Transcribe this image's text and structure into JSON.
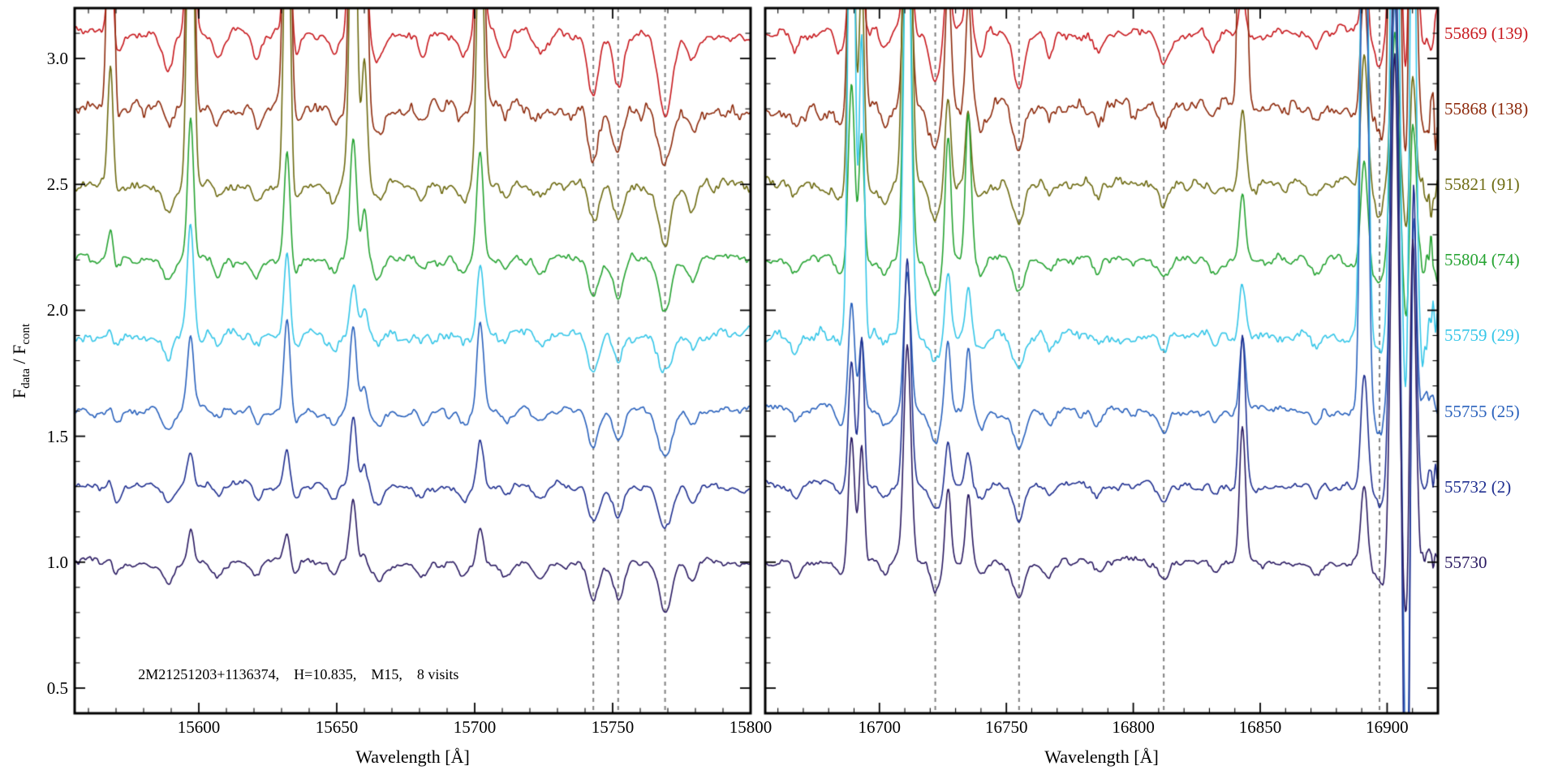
{
  "chart_data": {
    "type": "line",
    "title": "",
    "xlabel": "Wavelength [Å]",
    "ylabel": "F_data / F_cont",
    "ylabel_parts": {
      "f1": "F",
      "sub1": "data",
      "mid": " / F",
      "sub2": "cont"
    },
    "ylim": [
      0.4,
      3.2
    ],
    "yticks": [
      "0.5",
      "1.0",
      "1.5",
      "2.0",
      "2.5",
      "3.0"
    ],
    "ytick_values": [
      0.5,
      1.0,
      1.5,
      2.0,
      2.5,
      3.0
    ],
    "y_minor_step": 0.1,
    "grid": false,
    "legend_position": "right",
    "annotation": "2M21251203+1136374,    H=10.835,    M15,    8 visits",
    "annotation_xy": [
      15578,
      0.55
    ],
    "dashed_line_color": "#808080",
    "axis_color": "#000000",
    "panels": [
      {
        "xlim": [
          15555,
          15800
        ],
        "xticks": [
          15600,
          15650,
          15700,
          15750,
          15800
        ],
        "x_minor_step": 10,
        "dashed_lines": [
          15743,
          15752,
          15769
        ],
        "absorption_lines": [
          {
            "x": 15570,
            "w": 1.6,
            "d": 0.05
          },
          {
            "x": 15589,
            "w": 1.8,
            "d": 0.07
          },
          {
            "x": 15607,
            "w": 1.5,
            "d": 0.05
          },
          {
            "x": 15621,
            "w": 1.5,
            "d": 0.05
          },
          {
            "x": 15635,
            "w": 1.5,
            "d": 0.04
          },
          {
            "x": 15649,
            "w": 1.5,
            "d": 0.05
          },
          {
            "x": 15665,
            "w": 1.8,
            "d": 0.06
          },
          {
            "x": 15681,
            "w": 1.5,
            "d": 0.04
          },
          {
            "x": 15696,
            "w": 1.5,
            "d": 0.04
          },
          {
            "x": 15711,
            "w": 1.5,
            "d": 0.04
          },
          {
            "x": 15724,
            "w": 1.8,
            "d": 0.05
          },
          {
            "x": 15743,
            "w": 2.0,
            "d": 0.14
          },
          {
            "x": 15752,
            "w": 1.8,
            "d": 0.13
          },
          {
            "x": 15769,
            "w": 2.4,
            "d": 0.18
          },
          {
            "x": 15779,
            "w": 1.8,
            "d": 0.07
          }
        ],
        "emission_lines": [
          {
            "x": 15568,
            "w": 1.0,
            "amps": [
              0.45,
              1.6,
              0.5,
              0.12,
              0.06,
              0.05,
              0.04,
              0.03
            ]
          },
          {
            "x": 15597,
            "w": 1.1,
            "amps": [
              1.8,
              1.8,
              1.8,
              0.55,
              0.45,
              0.28,
              0.14,
              0.12
            ]
          },
          {
            "x": 15632,
            "w": 1.1,
            "amps": [
              0.9,
              1.8,
              1.4,
              0.45,
              0.32,
              0.38,
              0.14,
              0.1
            ]
          },
          {
            "x": 15656,
            "w": 1.2,
            "amps": [
              1.8,
              1.8,
              1.6,
              0.5,
              0.22,
              0.32,
              0.28,
              0.25
            ]
          },
          {
            "x": 15660,
            "w": 1.0,
            "amps": [
              0.6,
              1.2,
              0.5,
              0.2,
              0.1,
              0.1,
              0.08,
              0.06
            ]
          },
          {
            "x": 15702,
            "w": 1.2,
            "amps": [
              1.0,
              1.6,
              1.2,
              0.45,
              0.28,
              0.35,
              0.18,
              0.15
            ]
          }
        ],
        "edge_noise": null
      },
      {
        "xlim": [
          16655,
          16920
        ],
        "xticks": [
          16700,
          16750,
          16800,
          16850,
          16900
        ],
        "x_minor_step": 10,
        "dashed_lines": [
          16722,
          16755,
          16812,
          16897
        ],
        "absorption_lines": [
          {
            "x": 16667,
            "w": 1.5,
            "d": 0.05
          },
          {
            "x": 16685,
            "w": 1.8,
            "d": 0.05
          },
          {
            "x": 16702,
            "w": 1.5,
            "d": 0.04
          },
          {
            "x": 16722,
            "w": 2.0,
            "d": 0.11
          },
          {
            "x": 16740,
            "w": 1.5,
            "d": 0.05
          },
          {
            "x": 16755,
            "w": 2.2,
            "d": 0.13
          },
          {
            "x": 16767,
            "w": 1.5,
            "d": 0.05
          },
          {
            "x": 16786,
            "w": 1.5,
            "d": 0.04
          },
          {
            "x": 16812,
            "w": 2.0,
            "d": 0.06
          },
          {
            "x": 16832,
            "w": 1.5,
            "d": 0.04
          },
          {
            "x": 16872,
            "w": 1.5,
            "d": 0.04
          },
          {
            "x": 16897,
            "w": 2.0,
            "d": 0.09
          },
          {
            "x": 16908,
            "w": 1.4,
            "depths": [
              0.3,
              0.4,
              0.25,
              0.3,
              0.5,
              1.8,
              2.2,
              0.4
            ]
          }
        ],
        "emission_lines": [
          {
            "x": 16689,
            "w": 1.2,
            "amps": [
              0.4,
              1.2,
              1.6,
              0.7,
              2.6,
              0.45,
              0.5,
              0.5
            ]
          },
          {
            "x": 16693,
            "w": 1.0,
            "amps": [
              0.3,
              1.6,
              0.8,
              0.5,
              1.2,
              0.3,
              0.6,
              0.45
            ]
          },
          {
            "x": 16711,
            "w": 1.4,
            "amps": [
              0.8,
              1.1,
              2.2,
              1.6,
              1.9,
              0.55,
              0.9,
              0.85
            ]
          },
          {
            "x": 16727,
            "w": 1.1,
            "amps": [
              0.3,
              0.5,
              0.35,
              0.5,
              0.25,
              0.3,
              0.18,
              0.3
            ]
          },
          {
            "x": 16735,
            "w": 1.1,
            "amps": [
              0.25,
              0.45,
              0.3,
              0.55,
              0.2,
              0.25,
              0.12,
              0.28
            ]
          },
          {
            "x": 16843,
            "w": 1.2,
            "amps": [
              0.2,
              2.4,
              0.3,
              0.25,
              0.2,
              0.3,
              0.6,
              0.55
            ]
          },
          {
            "x": 16891,
            "w": 1.3,
            "amps": [
              0.3,
              0.45,
              0.5,
              0.4,
              2.6,
              2.6,
              0.45,
              0.3
            ]
          },
          {
            "x": 16903,
            "w": 1.5,
            "amps": [
              1.6,
              2.6,
              0.7,
              0.9,
              2.8,
              1.6,
              2.4,
              2.0
            ]
          },
          {
            "x": 16910,
            "w": 1.2,
            "amps": [
              1.2,
              2.0,
              0.5,
              0.6,
              2.2,
              1.2,
              1.8,
              1.4
            ]
          }
        ],
        "edge_noise": {
          "start": 16882,
          "mult": 4.5
        }
      }
    ],
    "series": [
      {
        "label": "55869 (139)",
        "color": "#c8191e",
        "offset": 3.1,
        "noise": 0.021,
        "abs_scale": 1.7
      },
      {
        "label": "55868 (138)",
        "color": "#8e2b0d",
        "offset": 2.8,
        "noise": 0.033,
        "abs_scale": 1.3
      },
      {
        "label": "55821 (91)",
        "color": "#6e6b12",
        "offset": 2.5,
        "noise": 0.023,
        "abs_scale": 1.2
      },
      {
        "label": "55804 (74)",
        "color": "#27a433",
        "offset": 2.2,
        "noise": 0.019,
        "abs_scale": 1.1
      },
      {
        "label": "55759 (29)",
        "color": "#35c6e8",
        "offset": 1.9,
        "noise": 0.023,
        "abs_scale": 0.9
      },
      {
        "label": "55755 (25)",
        "color": "#2a62bd",
        "offset": 1.6,
        "noise": 0.017,
        "abs_scale": 1.0
      },
      {
        "label": "55732 (2)",
        "color": "#1f2f90",
        "offset": 1.3,
        "noise": 0.015,
        "abs_scale": 1.0
      },
      {
        "label": "55730",
        "color": "#2a1a62",
        "offset": 1.0,
        "noise": 0.015,
        "abs_scale": 1.1
      }
    ]
  }
}
